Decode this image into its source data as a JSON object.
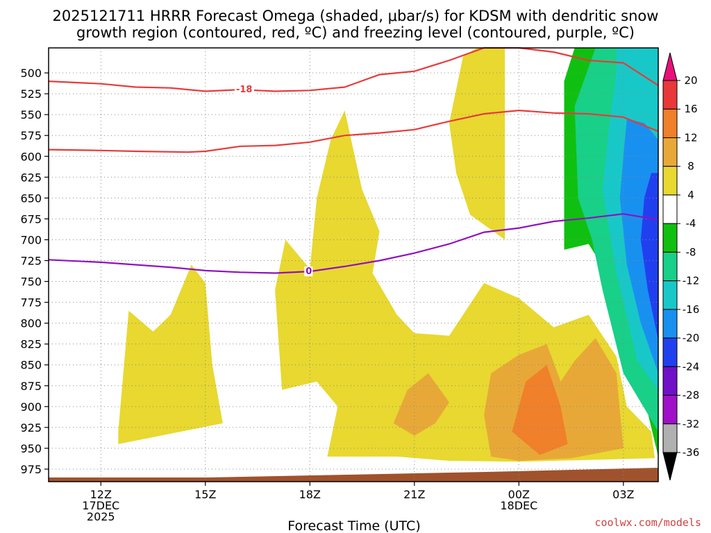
{
  "chart_data": {
    "type": "heatmap",
    "title": {
      "line1": "2025121711 HRRR Forecast Omega (shaded, μbar/s) for KDSM with dendritic snow",
      "line2": "growth region (contoured, red, ºC) and freezing level (contoured, purple, ºC)"
    },
    "xlabel": "Forecast Time (UTC)",
    "ylabel": "",
    "credit": "coolwx.com/models",
    "x_range_hours": [
      10.5,
      28.0
    ],
    "y_range_hpa": [
      470,
      990
    ],
    "x_ticks": [
      {
        "hour": 12,
        "line1": "12Z",
        "line2": "17DEC",
        "line3": "2025"
      },
      {
        "hour": 15,
        "line1": "15Z",
        "line2": "",
        "line3": ""
      },
      {
        "hour": 18,
        "line1": "18Z",
        "line2": "",
        "line3": ""
      },
      {
        "hour": 21,
        "line1": "21Z",
        "line2": "",
        "line3": ""
      },
      {
        "hour": 24,
        "line1": "00Z",
        "line2": "18DEC",
        "line3": ""
      },
      {
        "hour": 27,
        "line1": "03Z",
        "line2": "",
        "line3": ""
      }
    ],
    "y_ticks": [
      "500",
      "525",
      "550",
      "575",
      "600",
      "625",
      "650",
      "675",
      "700",
      "725",
      "750",
      "775",
      "800",
      "825",
      "850",
      "875",
      "900",
      "925",
      "950",
      "975"
    ],
    "colorbar": {
      "labels": [
        "20",
        "16",
        "12",
        "8",
        "4",
        "-4",
        "-8",
        "-12",
        "-16",
        "-20",
        "-24",
        "-28",
        "-32",
        "-36"
      ],
      "colors": [
        "#e8107a",
        "#e8383a",
        "#f0802a",
        "#e8a838",
        "#e8d830",
        "#ffffff",
        "#10c010",
        "#18d088",
        "#18c8c8",
        "#1890f0",
        "#2040f0",
        "#7010c8",
        "#a010c8",
        "#b0b0b0",
        "#000000"
      ]
    },
    "contours": [
      {
        "name": "-18C",
        "label": "-18",
        "color": "#e83a3a",
        "points": [
          [
            10.5,
            510
          ],
          [
            12,
            513
          ],
          [
            13,
            517
          ],
          [
            14,
            518
          ],
          [
            15,
            522
          ],
          [
            16,
            520
          ],
          [
            17,
            522
          ],
          [
            18,
            521
          ],
          [
            19,
            517
          ],
          [
            20,
            502
          ],
          [
            21,
            498
          ],
          [
            22,
            485
          ],
          [
            23,
            465
          ],
          [
            24,
            466
          ],
          [
            25,
            475
          ],
          [
            26,
            485
          ],
          [
            27,
            488
          ],
          [
            28,
            515
          ]
        ]
      },
      {
        "name": "-12C",
        "label": "",
        "color": "#e83a3a",
        "points": [
          [
            10.5,
            592
          ],
          [
            12,
            593
          ],
          [
            13,
            594
          ],
          [
            14.5,
            595
          ],
          [
            15,
            594
          ],
          [
            16,
            588
          ],
          [
            17,
            587
          ],
          [
            18,
            583
          ],
          [
            19,
            575
          ],
          [
            20,
            572
          ],
          [
            21,
            568
          ],
          [
            22,
            558
          ],
          [
            23,
            549
          ],
          [
            24,
            545
          ],
          [
            25,
            548
          ],
          [
            26,
            549
          ],
          [
            27,
            553
          ],
          [
            28,
            570
          ]
        ]
      },
      {
        "name": "0C",
        "label": "0",
        "color": "#9010c0",
        "points": [
          [
            10.5,
            724
          ],
          [
            12,
            727
          ],
          [
            13,
            730
          ],
          [
            14,
            733
          ],
          [
            15,
            737
          ],
          [
            16,
            739
          ],
          [
            17,
            740
          ],
          [
            18,
            738
          ],
          [
            19,
            732
          ],
          [
            20,
            725
          ],
          [
            21,
            716
          ],
          [
            22,
            705
          ],
          [
            23,
            691
          ],
          [
            24,
            686
          ],
          [
            25,
            678
          ],
          [
            26,
            674
          ],
          [
            27,
            669
          ],
          [
            28,
            676
          ]
        ]
      }
    ],
    "fields": [
      {
        "level": "4 to 8",
        "color": "#e8d830",
        "points": [
          [
            12.5,
            930
          ],
          [
            12.8,
            785
          ],
          [
            13.5,
            810
          ],
          [
            14,
            790
          ],
          [
            14.6,
            730
          ],
          [
            15,
            752
          ],
          [
            15.2,
            850
          ],
          [
            15.5,
            920
          ],
          [
            12.5,
            945
          ]
        ]
      },
      {
        "level": "4 to 8",
        "color": "#e8d830",
        "points": [
          [
            17.2,
            880
          ],
          [
            17.0,
            760
          ],
          [
            17.3,
            700
          ],
          [
            18.0,
            735
          ],
          [
            18.2,
            650
          ],
          [
            18.6,
            580
          ],
          [
            19.0,
            545
          ],
          [
            19.5,
            640
          ],
          [
            20.0,
            690
          ],
          [
            19.8,
            740
          ],
          [
            20.5,
            790
          ],
          [
            21.0,
            812
          ],
          [
            22,
            815
          ],
          [
            23,
            752
          ],
          [
            24,
            770
          ],
          [
            25,
            805
          ],
          [
            26,
            790
          ],
          [
            26.8,
            840
          ],
          [
            27.1,
            900
          ],
          [
            27.8,
            930
          ],
          [
            27.9,
            962
          ],
          [
            24,
            966
          ],
          [
            22,
            965
          ],
          [
            20.5,
            960
          ],
          [
            18.5,
            960
          ],
          [
            18.8,
            900
          ],
          [
            18.2,
            870
          ]
        ]
      },
      {
        "level": "4 to 8",
        "color": "#e8d830",
        "points": [
          [
            22.4,
            480
          ],
          [
            22.8,
            465
          ],
          [
            23.6,
            465
          ],
          [
            23.6,
            700
          ],
          [
            22.6,
            670
          ],
          [
            22.2,
            620
          ],
          [
            22.0,
            560
          ]
        ]
      },
      {
        "level": "8 to 12",
        "color": "#e8a838",
        "points": [
          [
            20.4,
            920
          ],
          [
            20.8,
            880
          ],
          [
            21.4,
            860
          ],
          [
            22.0,
            895
          ],
          [
            21.6,
            920
          ],
          [
            21.0,
            935
          ]
        ]
      },
      {
        "level": "8 to 12",
        "color": "#e8a838",
        "points": [
          [
            23.0,
            910
          ],
          [
            23.2,
            860
          ],
          [
            24.0,
            838
          ],
          [
            24.8,
            825
          ],
          [
            25.2,
            870
          ],
          [
            25.6,
            845
          ],
          [
            26.2,
            818
          ],
          [
            26.8,
            860
          ],
          [
            27.0,
            950
          ],
          [
            25.5,
            962
          ],
          [
            24.0,
            965
          ],
          [
            23.2,
            960
          ]
        ]
      },
      {
        "level": "12 to 16",
        "color": "#f0802a",
        "points": [
          [
            23.8,
            930
          ],
          [
            24.2,
            870
          ],
          [
            24.8,
            850
          ],
          [
            25.2,
            900
          ],
          [
            25.4,
            945
          ],
          [
            24.6,
            958
          ]
        ]
      },
      {
        "level": "-4 to -8",
        "color": "#10c010",
        "points": [
          [
            26.6,
            470
          ],
          [
            28,
            470
          ],
          [
            28,
            960
          ],
          [
            27.6,
            890
          ],
          [
            26.6,
            745
          ],
          [
            26.0,
            705
          ],
          [
            25.3,
            712
          ],
          [
            25.3,
            510
          ],
          [
            25.6,
            470
          ]
        ]
      },
      {
        "level": "-8 to -12",
        "color": "#18d088",
        "points": [
          [
            26.2,
            470
          ],
          [
            28,
            470
          ],
          [
            28,
            930
          ],
          [
            27.0,
            860
          ],
          [
            26.4,
            760
          ],
          [
            26.1,
            700
          ],
          [
            25.7,
            650
          ],
          [
            25.6,
            540
          ]
        ]
      },
      {
        "level": "-12 to -16",
        "color": "#18c8c8",
        "points": [
          [
            26.8,
            470
          ],
          [
            28,
            470
          ],
          [
            28,
            880
          ],
          [
            27.4,
            845
          ],
          [
            26.8,
            740
          ],
          [
            26.4,
            640
          ],
          [
            26.6,
            560
          ],
          [
            26.8,
            500
          ]
        ]
      },
      {
        "level": "-16 to -20",
        "color": "#1890f0",
        "points": [
          [
            27.1,
            555
          ],
          [
            27.6,
            560
          ],
          [
            28,
            580
          ],
          [
            28,
            860
          ],
          [
            27.5,
            800
          ],
          [
            27.1,
            730
          ],
          [
            26.9,
            650
          ],
          [
            27.0,
            600
          ]
        ]
      },
      {
        "level": "-20 to -24",
        "color": "#2040f0",
        "points": [
          [
            27.8,
            620
          ],
          [
            28,
            620
          ],
          [
            28,
            820
          ],
          [
            27.7,
            760
          ],
          [
            27.5,
            700
          ],
          [
            27.6,
            650
          ]
        ]
      }
    ]
  }
}
